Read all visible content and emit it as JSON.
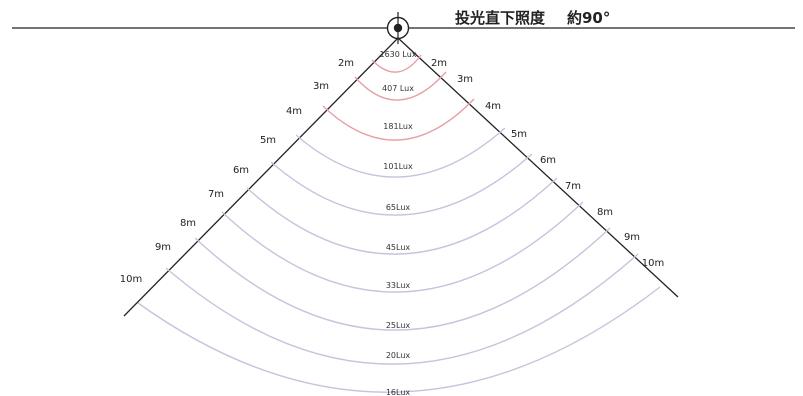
{
  "diagram": {
    "title_label": "投光直下照度",
    "title_value": "約90°",
    "colors": {
      "line": "#222222",
      "arc_near": "#e7a0a6",
      "arc_far": "#c7c3dd"
    },
    "rings": [
      {
        "distance": "2m",
        "lux": "1630 Lux",
        "zone": "near"
      },
      {
        "distance": "3m",
        "lux": "407 Lux",
        "zone": "near"
      },
      {
        "distance": "4m",
        "lux": "181Lux",
        "zone": "near"
      },
      {
        "distance": "5m",
        "lux": "101Lux",
        "zone": "far"
      },
      {
        "distance": "6m",
        "lux": "65Lux",
        "zone": "far"
      },
      {
        "distance": "7m",
        "lux": "45Lux",
        "zone": "far"
      },
      {
        "distance": "8m",
        "lux": "33Lux",
        "zone": "far"
      },
      {
        "distance": "9m",
        "lux": "25Lux",
        "zone": "far"
      },
      {
        "distance": "10m",
        "lux": "20Lux",
        "zone": "far"
      },
      {
        "lux": "16Lux",
        "zone": "far"
      }
    ]
  }
}
